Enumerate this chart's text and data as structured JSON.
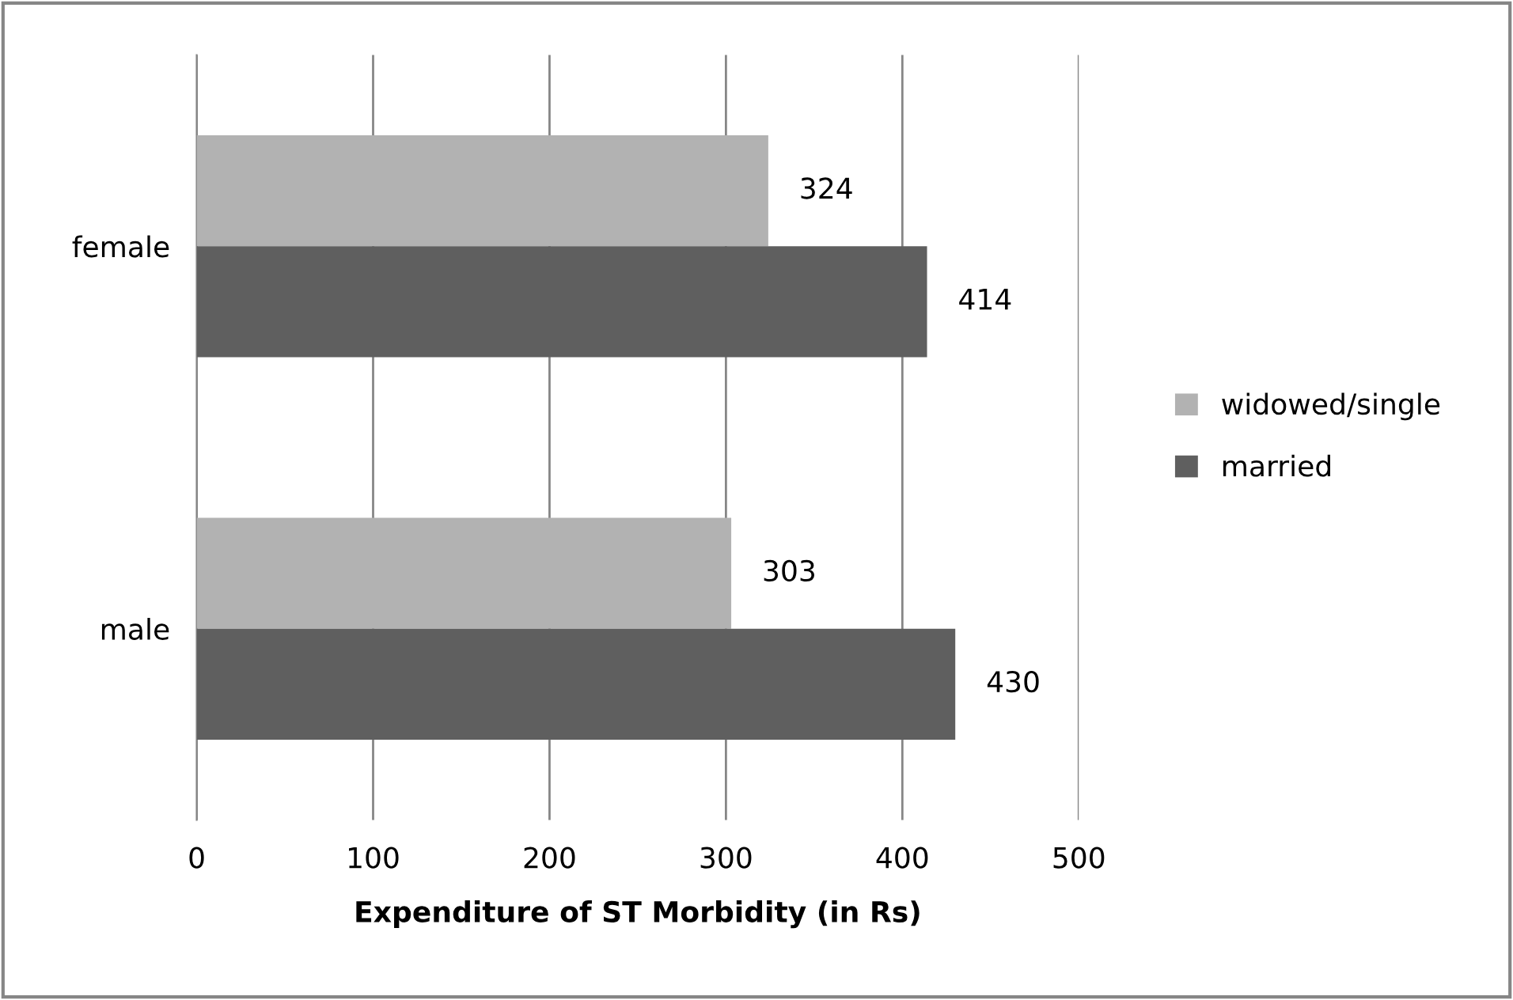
{
  "chart_data": {
    "type": "bar",
    "orientation": "horizontal",
    "categories": [
      "female",
      "male"
    ],
    "series": [
      {
        "name": "widowed/single",
        "color": "#b2b2b2",
        "values": [
          324,
          303
        ]
      },
      {
        "name": "married",
        "color": "#5f5f5f",
        "values": [
          414,
          430
        ]
      }
    ],
    "xlabel": "Expenditure of ST Morbidity (in Rs)",
    "xlim": [
      0,
      500
    ],
    "xticks": [
      0,
      100,
      200,
      300,
      400,
      500
    ],
    "grid": "x",
    "legend": "right",
    "data_labels": true
  }
}
